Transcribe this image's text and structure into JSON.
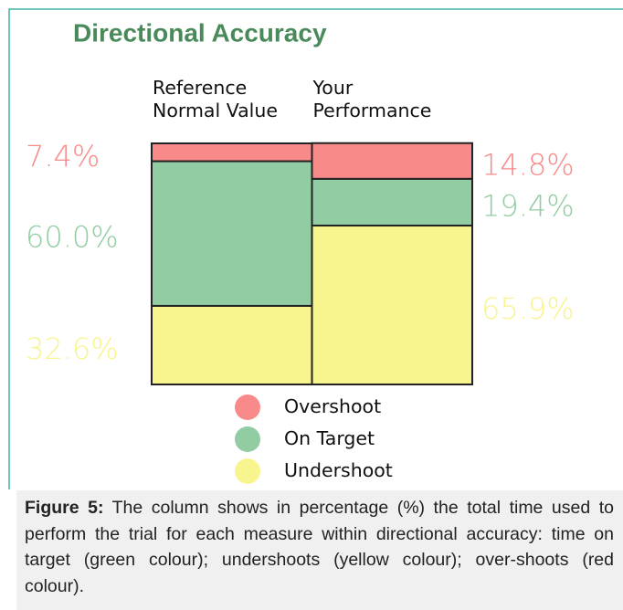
{
  "chart_data": {
    "type": "stacked_bar",
    "title": "Directional Accuracy",
    "categories": [
      [
        "Reference",
        "Normal Value"
      ],
      [
        "Your",
        "Performance"
      ]
    ],
    "ylim": [
      0,
      100
    ],
    "series": [
      {
        "name": "Undershoot",
        "color": "#f8f48e",
        "values": [
          32.6,
          65.9
        ],
        "value_labels": [
          "32.6%",
          "65.9%"
        ]
      },
      {
        "name": "On Target",
        "color": "#92cca2",
        "values": [
          60.0,
          19.4
        ],
        "value_labels": [
          "60.0%",
          "19.4%"
        ]
      },
      {
        "name": "Overshoot",
        "color": "#f98a8a",
        "values": [
          7.4,
          14.8
        ],
        "value_labels": [
          "7.4%",
          "14.8%"
        ]
      }
    ],
    "legend_order": [
      2,
      1,
      0
    ]
  },
  "caption": {
    "label": "Figure 5:",
    "text": "The column shows in percentage (%) the total time used to perform the trial for each measure within directional accuracy: time on target (green colour); undershoots (yellow colour); over-shoots (red colour)."
  }
}
